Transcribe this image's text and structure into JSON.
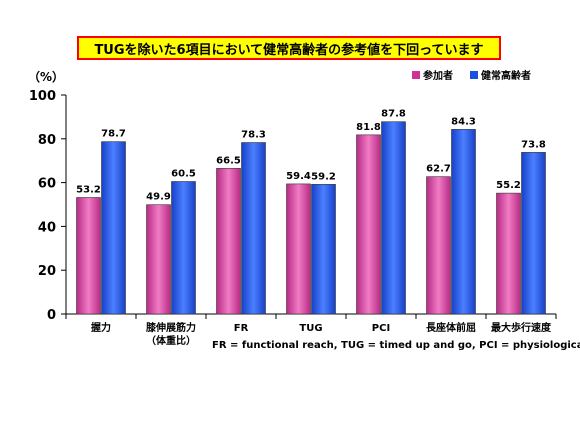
{
  "title": "TUGを除いた6項目において健常高齢者の参考値を下回っています",
  "chart_data": {
    "type": "bar",
    "ylabel": "（%）",
    "ylim": [
      0,
      100
    ],
    "yticks": [
      0,
      20,
      40,
      60,
      80,
      100
    ],
    "categories": [
      [
        "握力"
      ],
      [
        "膝伸展筋力",
        "（体重比）"
      ],
      [
        "FR"
      ],
      [
        "TUG"
      ],
      [
        "PCI"
      ],
      [
        "長座体前屈"
      ],
      [
        "最大歩行速度"
      ]
    ],
    "series": [
      {
        "name": "参加者",
        "color": "#cc3399",
        "values": [
          53.2,
          49.9,
          66.5,
          59.4,
          81.8,
          62.7,
          55.2
        ]
      },
      {
        "name": "健常高齢者",
        "color": "#1a4fe0",
        "values": [
          78.7,
          60.5,
          78.3,
          59.2,
          87.8,
          84.3,
          73.8
        ]
      }
    ],
    "legend_position": "top-right",
    "grid": false,
    "footnote": "FR = functional reach,  TUG = timed up and go,  PCI = physiological cost index"
  }
}
